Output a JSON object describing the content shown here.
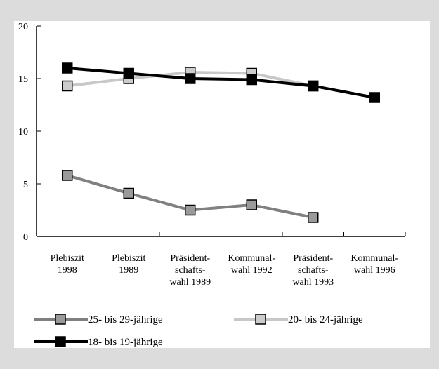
{
  "chart_data": {
    "type": "line",
    "categories": [
      "Plebiszit\n1998",
      "Plebiszit\n1989",
      "Präsident-\nschafts-\nwahl 1989",
      "Kommunal-\nwahl 1992",
      "Präsident-\nschafts-\nwahl 1993",
      "Kommunal-\nwahl 1996"
    ],
    "series": [
      {
        "name": "25- bis 29-jährige",
        "color": "#808080",
        "marker_color": "#9a9a9a",
        "values": [
          5.8,
          4.1,
          2.5,
          3.0,
          1.8,
          null
        ]
      },
      {
        "name": "20- bis 24-jährige",
        "color": "#c8c8c8",
        "marker_color": "#cccccc",
        "values": [
          14.3,
          15.0,
          15.6,
          15.5,
          14.3,
          null
        ]
      },
      {
        "name": "18- bis 19-jährige",
        "color": "#000000",
        "marker_color": "#000000",
        "values": [
          16.0,
          15.5,
          15.0,
          14.9,
          14.3,
          13.2
        ]
      }
    ],
    "ylim": [
      0,
      20
    ],
    "yticks": [
      0,
      5,
      10,
      15,
      20
    ],
    "grid": false
  }
}
